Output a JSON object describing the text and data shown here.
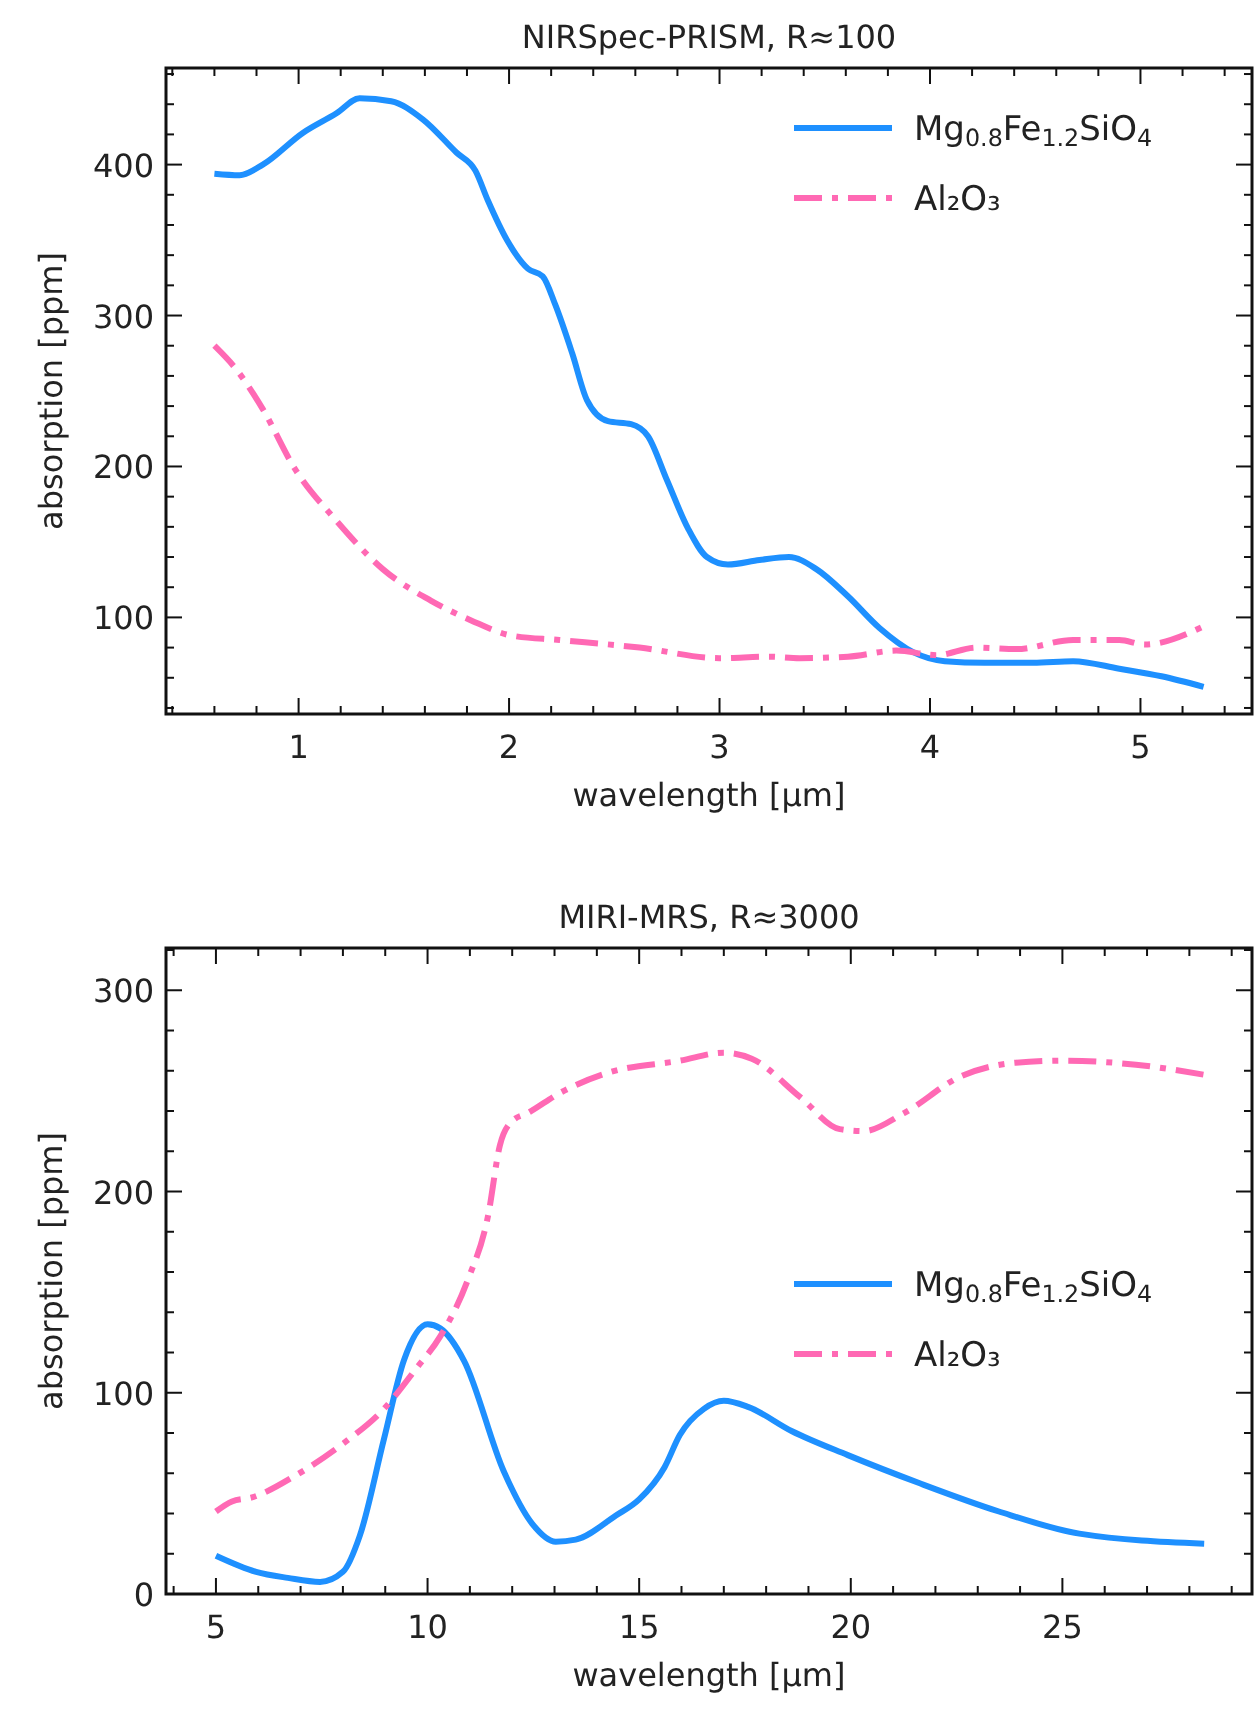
{
  "chart_data": [
    {
      "type": "line",
      "title": "NIRSpec-PRISM, R≈100",
      "xlabel": "wavelength [μm]",
      "ylabel": "absorption [ppm]",
      "xlim": [
        0.37,
        5.53
      ],
      "ylim": [
        36,
        464
      ],
      "xticks": [
        {
          "value": 0.4,
          "label": null
        },
        {
          "value": 0.6,
          "label": null
        },
        {
          "value": 0.8,
          "label": null
        },
        1,
        {
          "value": 1.2,
          "label": null
        },
        {
          "value": 1.4,
          "label": null
        },
        {
          "value": 1.6,
          "label": null
        },
        {
          "value": 1.8,
          "label": null
        },
        2,
        {
          "value": 2.2,
          "label": null
        },
        {
          "value": 2.4,
          "label": null
        },
        {
          "value": 2.6,
          "label": null
        },
        {
          "value": 2.8,
          "label": null
        },
        3,
        {
          "value": 3.2,
          "label": null
        },
        {
          "value": 3.4,
          "label": null
        },
        {
          "value": 3.6,
          "label": null
        },
        {
          "value": 3.8,
          "label": null
        },
        4,
        {
          "value": 4.2,
          "label": null
        },
        {
          "value": 4.4,
          "label": null
        },
        {
          "value": 4.6,
          "label": null
        },
        {
          "value": 4.8,
          "label": null
        },
        5,
        {
          "value": 5.2,
          "label": null
        },
        {
          "value": 5.4,
          "label": null
        }
      ],
      "yticks": [
        {
          "value": 40,
          "label": null
        },
        {
          "value": 60,
          "label": null
        },
        {
          "value": 80,
          "label": null
        },
        100,
        {
          "value": 120,
          "label": null
        },
        {
          "value": 140,
          "label": null
        },
        {
          "value": 160,
          "label": null
        },
        {
          "value": 180,
          "label": null
        },
        200,
        {
          "value": 220,
          "label": null
        },
        {
          "value": 240,
          "label": null
        },
        {
          "value": 260,
          "label": null
        },
        {
          "value": 280,
          "label": null
        },
        300,
        {
          "value": 320,
          "label": null
        },
        {
          "value": 340,
          "label": null
        },
        {
          "value": 360,
          "label": null
        },
        {
          "value": 380,
          "label": null
        },
        400,
        {
          "value": 420,
          "label": null
        },
        {
          "value": 440,
          "label": null
        },
        {
          "value": 460,
          "label": null
        }
      ],
      "grid": false,
      "legend": "top right",
      "series": [
        {
          "name": "Mg$_{0.8}$Fe$_{1.2}$SiO$_{4}$",
          "color": "#1e90ff",
          "line_style": "solid",
          "x": [
            0.6,
            0.72,
            0.83,
            1.02,
            1.18,
            1.29,
            1.44,
            1.59,
            1.75,
            1.84,
            1.9,
            1.99,
            2.09,
            2.16,
            2.22,
            2.3,
            2.37,
            2.47,
            2.58,
            2.66,
            2.75,
            2.85,
            2.94,
            3.04,
            3.19,
            3.33,
            3.46,
            3.61,
            3.76,
            3.92,
            4.07,
            4.26,
            4.49,
            4.68,
            4.9,
            5.1,
            5.3
          ],
          "values": [
            394,
            393,
            400,
            421,
            434,
            444,
            442,
            430,
            408,
            396,
            376,
            350,
            331,
            326,
            307,
            275,
            244,
            230,
            228,
            220,
            191,
            159,
            140,
            135,
            138,
            140,
            132,
            114,
            93,
            77,
            71,
            70,
            70,
            71,
            66,
            61,
            54
          ]
        },
        {
          "name": "Al₂O₃",
          "color": "#ff69b4",
          "line_style": "dashdot",
          "x": [
            0.6,
            0.7,
            0.83,
            0.98,
            1.18,
            1.4,
            1.63,
            1.82,
            2.01,
            2.24,
            2.62,
            3.0,
            3.23,
            3.38,
            3.61,
            3.84,
            4.03,
            4.22,
            4.41,
            4.68,
            4.9,
            5.02,
            5.3
          ],
          "values": [
            280,
            265,
            238,
            199,
            164,
            132,
            111,
            98,
            88,
            85,
            80,
            73,
            74,
            73,
            74,
            78,
            75,
            80,
            79,
            85,
            85,
            82,
            94
          ]
        }
      ]
    },
    {
      "type": "line",
      "title": "MIRI-MRS, R≈3000",
      "xlabel": "wavelength [μm]",
      "ylabel": "absorption [ppm]",
      "xlim": [
        3.82,
        29.48
      ],
      "ylim": [
        0,
        321
      ],
      "xticks": [
        {
          "value": 4,
          "label": null
        },
        5,
        {
          "value": 6,
          "label": null
        },
        {
          "value": 7,
          "label": null
        },
        {
          "value": 8,
          "label": null
        },
        {
          "value": 9,
          "label": null
        },
        10,
        {
          "value": 11,
          "label": null
        },
        {
          "value": 12,
          "label": null
        },
        {
          "value": 13,
          "label": null
        },
        {
          "value": 14,
          "label": null
        },
        15,
        {
          "value": 16,
          "label": null
        },
        {
          "value": 17,
          "label": null
        },
        {
          "value": 18,
          "label": null
        },
        {
          "value": 19,
          "label": null
        },
        20,
        {
          "value": 21,
          "label": null
        },
        {
          "value": 22,
          "label": null
        },
        {
          "value": 23,
          "label": null
        },
        {
          "value": 24,
          "label": null
        },
        25,
        {
          "value": 26,
          "label": null
        },
        {
          "value": 27,
          "label": null
        },
        {
          "value": 28,
          "label": null
        },
        {
          "value": 29,
          "label": null
        }
      ],
      "yticks": [
        0,
        {
          "value": 20,
          "label": null
        },
        {
          "value": 40,
          "label": null
        },
        {
          "value": 60,
          "label": null
        },
        {
          "value": 80,
          "label": null
        },
        100,
        {
          "value": 120,
          "label": null
        },
        {
          "value": 140,
          "label": null
        },
        {
          "value": 160,
          "label": null
        },
        {
          "value": 180,
          "label": null
        },
        200,
        {
          "value": 220,
          "label": null
        },
        {
          "value": 240,
          "label": null
        },
        {
          "value": 260,
          "label": null
        },
        {
          "value": 280,
          "label": null
        },
        300,
        {
          "value": 320,
          "label": null
        }
      ],
      "grid": false,
      "legend": "right",
      "series": [
        {
          "name": "Mg$_{0.8}$Fe$_{1.2}$SiO$_{4}$",
          "color": "#1e90ff",
          "line_style": "solid",
          "x": [
            5,
            5.95,
            6.7,
            7.46,
            8.0,
            8.4,
            8.97,
            9.44,
            10.0,
            10.3,
            10.86,
            11.8,
            12.47,
            13.03,
            13.5,
            14.45,
            15.0,
            15.6,
            15.96,
            16.53,
            17.0,
            17.57,
            18.6,
            19.93,
            21.63,
            23.5,
            25.4,
            28.35
          ],
          "values": [
            19,
            11,
            8,
            6,
            11,
            29,
            77,
            116,
            134,
            132,
            116,
            61,
            35,
            26,
            27,
            39,
            47,
            63,
            79,
            92,
            96,
            93,
            81,
            69,
            55,
            41,
            30,
            25
          ]
        },
        {
          "name": "Al₂O₃",
          "color": "#ff69b4",
          "line_style": "dashdot",
          "x": [
            5,
            5.38,
            5.85,
            6.89,
            8.02,
            8.97,
            9.73,
            10.3,
            10.95,
            11.43,
            11.71,
            12.0,
            12.37,
            13.13,
            14.26,
            15.96,
            17.0,
            17.66,
            18.8,
            19.74,
            20.3,
            21.26,
            22.58,
            23.9,
            25.04,
            26.74,
            28.35
          ],
          "values": [
            41,
            46,
            48,
            59,
            75,
            92,
            112,
            128,
            156,
            188,
            223,
            235,
            239,
            249,
            259,
            265,
            269,
            266,
            247,
            231,
            230,
            239,
            257,
            264,
            265,
            263,
            258
          ]
        }
      ]
    }
  ]
}
